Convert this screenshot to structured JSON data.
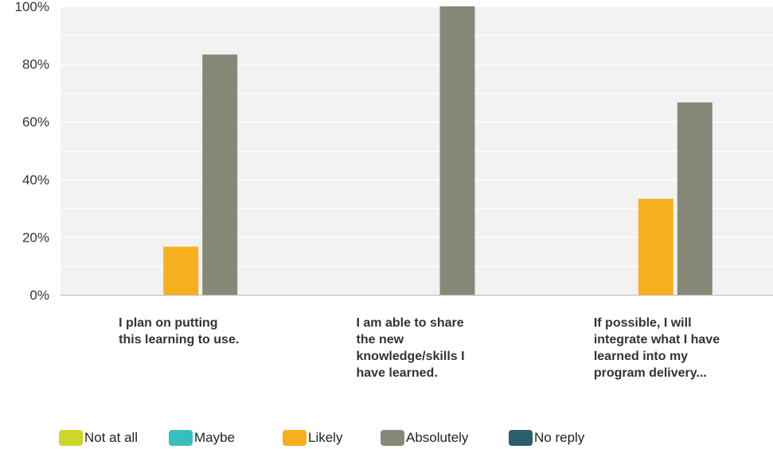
{
  "chart_data": {
    "type": "bar",
    "categories": [
      "I plan on putting this learning to use.",
      "I am able to share the new knowledge/skills I have learned.",
      "If possible, I will integrate what I have learned into my program delivery..."
    ],
    "category_lines": [
      [
        "I plan on putting",
        "this learning to use."
      ],
      [
        "I am able to share",
        "the new",
        "knowledge/skills I",
        "have learned."
      ],
      [
        "If possible, I will",
        "integrate what I have",
        "learned into my",
        "program delivery..."
      ]
    ],
    "series": [
      {
        "name": "Not at all",
        "color": "#cdd629",
        "values": [
          0,
          0,
          0
        ]
      },
      {
        "name": "Maybe",
        "color": "#35c0be",
        "values": [
          0,
          0,
          0
        ]
      },
      {
        "name": "Likely",
        "color": "#f6b01f",
        "values": [
          16.7,
          0,
          33.3
        ]
      },
      {
        "name": "Absolutely",
        "color": "#878978",
        "values": [
          83.3,
          100,
          66.7
        ]
      },
      {
        "name": "No reply",
        "color": "#2a5f6d",
        "values": [
          0,
          0,
          0
        ]
      }
    ],
    "y_ticks": [
      "0%",
      "20%",
      "40%",
      "60%",
      "80%",
      "100%"
    ],
    "ylim": [
      0,
      100
    ],
    "grid": true,
    "legend_position": "bottom"
  }
}
